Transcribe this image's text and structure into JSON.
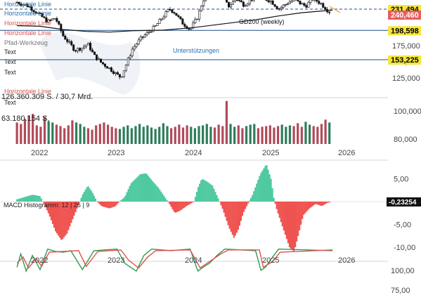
{
  "drawing_tools": {
    "items": [
      "Horizontale Linie",
      "Horizontale Linie",
      "Horizontale Linie",
      "Horizontale Linie",
      "Pfad-Werkzeug",
      "Text",
      "Text",
      "Text"
    ],
    "lower_items": [
      "Horizontale Linie",
      "Text"
    ],
    "colors": [
      "#2a6fb0",
      "#2a6fb0",
      "#d9534f",
      "#d9534f",
      "#777777",
      "#222222",
      "#222222",
      "#222222"
    ]
  },
  "price_panel": {
    "annotations": {
      "gd200": "GD200 (weekly)",
      "support": "Unterstützungen"
    },
    "price_axis_ticks": [
      "175,000",
      "150,000",
      "125,000"
    ],
    "price_axis_values": [
      175,
      150,
      125
    ],
    "level_badges": [
      {
        "label": "231,494",
        "value": 231.494,
        "bg": "#f5e63a",
        "fg": "#000000"
      },
      {
        "label": "240,460",
        "value": 240.46,
        "bg": "#e85d5d",
        "fg": "#ffffff"
      },
      {
        "label": "198,598",
        "value": 198.598,
        "bg": "#f5e63a",
        "fg": "#000000"
      },
      {
        "label": "153,225",
        "value": 153.225,
        "bg": "#f5e63a",
        "fg": "#000000"
      }
    ]
  },
  "volume_panel": {
    "label_1": "126.360.309 S. / 30,7 Mrd.",
    "label_2": "63.180.154 S.",
    "axis_ticks": [
      "100,000",
      "80,000"
    ]
  },
  "macd_panel": {
    "title": "MACD Histogramm: 12 | 26 | 9",
    "current_value": "-0,23254",
    "axis_ticks": [
      "5,00",
      "-5,00",
      "-10,00"
    ],
    "axis_values": [
      5,
      -5,
      -10
    ]
  },
  "stoch_panel": {
    "axis_ticks": [
      "100,00",
      "75,00"
    ]
  },
  "x_axis": {
    "labels": [
      "2022",
      "2023",
      "2024",
      "2025",
      "2026"
    ]
  },
  "colors": {
    "up": "#2e7d5b",
    "down": "#b04a5a",
    "macd_pos": "#4fc9a0",
    "macd_neg": "#ef5350",
    "gd200": "#111111",
    "hline_blue": "#1f4e8c",
    "badge_yellow": "#f5e63a"
  },
  "chart_data": [
    {
      "type": "candlestick",
      "title": "",
      "xlabel": "",
      "ylabel": "",
      "ylim": [
        115,
        245
      ],
      "x_range": [
        "2021-09",
        "2026-06"
      ],
      "horizontal_levels": [
        231.494,
        198.598,
        153.225
      ],
      "gd200_weekly": [
        [
          2021.7,
          206
        ],
        [
          2022.0,
          205
        ],
        [
          2022.3,
          200
        ],
        [
          2022.6,
          197
        ],
        [
          2022.9,
          196
        ],
        [
          2023.2,
          198
        ],
        [
          2023.6,
          199
        ],
        [
          2024.0,
          203
        ],
        [
          2024.4,
          209
        ],
        [
          2024.8,
          215
        ],
        [
          2025.1,
          221
        ],
        [
          2025.4,
          226
        ],
        [
          2025.8,
          230
        ]
      ],
      "price_path": [
        [
          2021.7,
          242
        ],
        [
          2021.85,
          236
        ],
        [
          2022.0,
          222
        ],
        [
          2022.1,
          212
        ],
        [
          2022.2,
          218
        ],
        [
          2022.3,
          190
        ],
        [
          2022.4,
          176
        ],
        [
          2022.45,
          168
        ],
        [
          2022.55,
          172
        ],
        [
          2022.62,
          178
        ],
        [
          2022.7,
          160
        ],
        [
          2022.8,
          148
        ],
        [
          2022.9,
          140
        ],
        [
          2023.0,
          130
        ],
        [
          2023.05,
          126
        ],
        [
          2023.12,
          146
        ],
        [
          2023.2,
          170
        ],
        [
          2023.3,
          185
        ],
        [
          2023.4,
          195
        ],
        [
          2023.5,
          205
        ],
        [
          2023.6,
          220
        ],
        [
          2023.68,
          232
        ],
        [
          2023.75,
          226
        ],
        [
          2023.85,
          210
        ],
        [
          2023.95,
          200
        ],
        [
          2024.05,
          220
        ],
        [
          2024.12,
          246
        ],
        [
          2024.25,
          258
        ],
        [
          2024.35,
          252
        ],
        [
          2024.45,
          236
        ],
        [
          2024.55,
          248
        ],
        [
          2024.65,
          238
        ],
        [
          2024.8,
          252
        ],
        [
          2025.0,
          244
        ],
        [
          2025.1,
          232
        ],
        [
          2025.2,
          240
        ],
        [
          2025.3,
          246
        ],
        [
          2025.45,
          236
        ],
        [
          2025.55,
          248
        ],
        [
          2025.65,
          240
        ],
        [
          2025.75,
          228
        ]
      ]
    },
    {
      "type": "bar",
      "title": "",
      "series": [
        {
          "values": [
            30,
            28,
            35,
            40,
            42,
            26,
            24,
            38,
            32,
            30,
            27,
            25,
            22,
            26,
            33,
            30,
            28,
            24,
            22,
            20,
            26,
            28,
            30,
            27,
            24,
            22,
            21,
            24,
            26,
            22,
            25,
            28,
            24,
            26,
            23,
            21,
            24,
            29,
            25,
            22,
            24,
            27,
            23,
            26,
            24,
            22,
            25,
            26,
            28,
            24,
            23,
            27,
            25,
            60,
            28,
            24,
            26,
            22,
            25,
            27,
            28,
            22,
            24,
            25,
            26,
            23,
            25,
            27,
            24,
            26,
            25,
            29,
            24,
            31,
            27,
            25,
            24,
            28,
            34,
            30
          ]
        }
      ]
    },
    {
      "type": "bar",
      "title": "MACD Histogramm: 12 | 26 | 9",
      "ylim": [
        -12,
        8.5
      ],
      "last_value": -0.23254,
      "path": [
        [
          2021.7,
          0.5
        ],
        [
          2021.9,
          1.5
        ],
        [
          2022.0,
          1.2
        ],
        [
          2022.05,
          -0.5
        ],
        [
          2022.12,
          -3
        ],
        [
          2022.2,
          -6.5
        ],
        [
          2022.28,
          -8.5
        ],
        [
          2022.35,
          -7
        ],
        [
          2022.42,
          -4
        ],
        [
          2022.48,
          -1.5
        ],
        [
          2022.55,
          1.5
        ],
        [
          2022.62,
          3.5
        ],
        [
          2022.68,
          2
        ],
        [
          2022.74,
          0
        ],
        [
          2022.8,
          -1
        ],
        [
          2022.9,
          -1.5
        ],
        [
          2022.98,
          -1
        ],
        [
          2023.03,
          0
        ],
        [
          2023.1,
          1
        ],
        [
          2023.18,
          4
        ],
        [
          2023.3,
          6
        ],
        [
          2023.38,
          6.2
        ],
        [
          2023.46,
          4.5
        ],
        [
          2023.54,
          3
        ],
        [
          2023.62,
          1
        ],
        [
          2023.68,
          -0.5
        ],
        [
          2023.75,
          -2.5
        ],
        [
          2023.82,
          -2
        ],
        [
          2023.9,
          -1
        ],
        [
          2024.0,
          0
        ],
        [
          2024.05,
          3
        ],
        [
          2024.1,
          5
        ],
        [
          2024.16,
          4.5
        ],
        [
          2024.24,
          3.5
        ],
        [
          2024.32,
          0.5
        ],
        [
          2024.38,
          -2
        ],
        [
          2024.45,
          -5.5
        ],
        [
          2024.52,
          -8
        ],
        [
          2024.58,
          -6
        ],
        [
          2024.64,
          -2.5
        ],
        [
          2024.7,
          -0.5
        ],
        [
          2024.76,
          1.5
        ],
        [
          2024.86,
          6
        ],
        [
          2024.94,
          8.2
        ],
        [
          2025.0,
          5
        ],
        [
          2025.04,
          0.5
        ],
        [
          2025.08,
          -2
        ],
        [
          2025.16,
          -6
        ],
        [
          2025.24,
          -10
        ],
        [
          2025.3,
          -11
        ],
        [
          2025.36,
          -7
        ],
        [
          2025.42,
          -3
        ],
        [
          2025.5,
          -1.5
        ],
        [
          2025.58,
          -0.5
        ],
        [
          2025.66,
          -1
        ],
        [
          2025.74,
          -0.2
        ]
      ]
    },
    {
      "type": "line",
      "title": "",
      "ylim": [
        70,
        105
      ],
      "series": [
        {
          "values": [
            [
              2021.7,
              95
            ],
            [
              2021.75,
              78
            ],
            [
              2021.82,
              100
            ],
            [
              2021.9,
              80
            ],
            [
              2022.0,
              98
            ],
            [
              2022.1,
              72
            ],
            [
              2022.2,
              75
            ],
            [
              2022.3,
              76
            ],
            [
              2022.4,
              74
            ],
            [
              2022.55,
              98
            ],
            [
              2022.7,
              74
            ],
            [
              2023.0,
              72
            ],
            [
              2023.1,
              90
            ],
            [
              2023.25,
              100
            ],
            [
              2023.35,
              80
            ],
            [
              2023.45,
              72
            ],
            [
              2023.7,
              74
            ],
            [
              2023.95,
              72
            ],
            [
              2024.05,
              100
            ],
            [
              2024.12,
              95
            ],
            [
              2024.2,
              90
            ],
            [
              2024.3,
              80
            ],
            [
              2024.4,
              72
            ],
            [
              2024.8,
              74
            ],
            [
              2024.87,
              99
            ],
            [
              2024.93,
              95
            ],
            [
              2025.0,
              85
            ],
            [
              2025.1,
              72
            ],
            [
              2025.8,
              74
            ]
          ]
        },
        {
          "values": [
            [
              2021.7,
              90
            ],
            [
              2021.78,
              82
            ],
            [
              2021.85,
              96
            ],
            [
              2021.95,
              84
            ],
            [
              2022.02,
              94
            ],
            [
              2022.12,
              76
            ],
            [
              2022.3,
              75
            ],
            [
              2022.5,
              74
            ],
            [
              2022.6,
              94
            ],
            [
              2022.75,
              75
            ],
            [
              2023.05,
              73
            ],
            [
              2023.15,
              86
            ],
            [
              2023.28,
              96
            ],
            [
              2023.4,
              82
            ],
            [
              2023.5,
              74
            ],
            [
              2023.95,
              73
            ],
            [
              2024.08,
              96
            ],
            [
              2024.2,
              88
            ],
            [
              2024.35,
              78
            ],
            [
              2024.45,
              73
            ],
            [
              2024.85,
              73
            ],
            [
              2024.9,
              95
            ],
            [
              2025.02,
              88
            ],
            [
              2025.12,
              76
            ],
            [
              2025.8,
              73
            ]
          ]
        }
      ]
    }
  ]
}
